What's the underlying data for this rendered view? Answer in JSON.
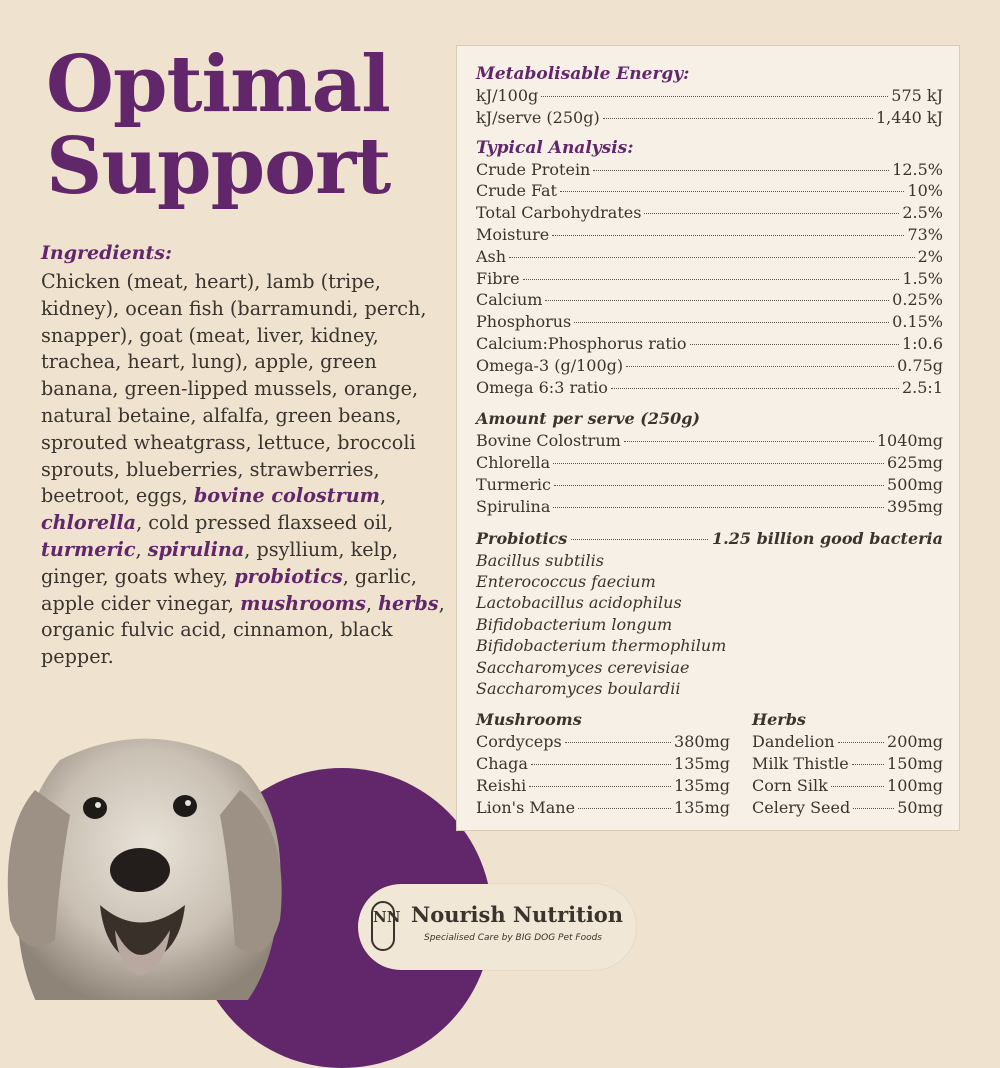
{
  "title": {
    "line1": "Optimal",
    "line2": "Support"
  },
  "ingredients": {
    "heading": "Ingredients:",
    "parts": [
      {
        "text": "Chicken (meat, heart), lamb (tripe, kidney), ocean fish (barramundi, perch, snapper), goat (meat, liver, kidney, trachea, heart, lung), apple, green banana, green-lipped mussels, orange, natural betaine, alfalfa, green beans, sprouted wheatgrass, lettuce, broccoli sprouts, blueberries, strawberries, beetroot, eggs, ",
        "bold": false
      },
      {
        "text": "bovine colostrum",
        "bold": true
      },
      {
        "text": ", ",
        "bold": false
      },
      {
        "text": "chlorella",
        "bold": true
      },
      {
        "text": ", cold pressed flaxseed oil, ",
        "bold": false
      },
      {
        "text": "turmeric",
        "bold": true
      },
      {
        "text": ", ",
        "bold": false
      },
      {
        "text": "spirulina",
        "bold": true
      },
      {
        "text": ", psyllium, kelp, ginger, goats whey, ",
        "bold": false
      },
      {
        "text": "probiotics",
        "bold": true
      },
      {
        "text": ", garlic, apple cider vinegar, ",
        "bold": false
      },
      {
        "text": "mushrooms",
        "bold": true
      },
      {
        "text": ", ",
        "bold": false
      },
      {
        "text": "herbs",
        "bold": true
      },
      {
        "text": ", organic fulvic acid, cinnamon, black pepper.",
        "bold": false
      }
    ]
  },
  "panel": {
    "energy": {
      "title": "Metabolisable Energy:",
      "rows": [
        {
          "label": "kJ/100g",
          "value": "575 kJ"
        },
        {
          "label": "kJ/serve (250g)",
          "value": "1,440 kJ"
        }
      ]
    },
    "analysis": {
      "title": "Typical Analysis:",
      "rows": [
        {
          "label": "Crude Protein",
          "value": "12.5%"
        },
        {
          "label": "Crude Fat",
          "value": "10%"
        },
        {
          "label": "Total Carbohydrates",
          "value": "2.5%"
        },
        {
          "label": "Moisture",
          "value": "73%"
        },
        {
          "label": "Ash",
          "value": "2%"
        },
        {
          "label": "Fibre",
          "value": "1.5%"
        },
        {
          "label": "Calcium",
          "value": "0.25%"
        },
        {
          "label": "Phosphorus",
          "value": "0.15%"
        },
        {
          "label": "Calcium:Phosphorus ratio",
          "value": "1:0.6"
        },
        {
          "label": "Omega-3 (g/100g)",
          "value": "0.75g"
        },
        {
          "label": "Omega 6:3 ratio",
          "value": "2.5:1"
        }
      ]
    },
    "serve": {
      "title": "Amount per serve (250g)",
      "rows": [
        {
          "label": "Bovine Colostrum",
          "value": "1040mg"
        },
        {
          "label": "Chlorella",
          "value": "625mg"
        },
        {
          "label": "Turmeric",
          "value": "500mg"
        },
        {
          "label": "Spirulina",
          "value": "395mg"
        }
      ]
    },
    "probiotics": {
      "label": "Probiotics",
      "value": "1.25 billion good bacteria",
      "species": [
        "Bacillus subtilis",
        "Enterococcus faecium",
        "Lactobacillus acidophilus",
        "Bifidobacterium longum",
        "Bifidobacterium thermophilum",
        "Saccharomyces cerevisiae",
        "Saccharomyces boulardii"
      ]
    },
    "mushrooms": {
      "title": "Mushrooms",
      "rows": [
        {
          "label": "Cordyceps",
          "value": "380mg"
        },
        {
          "label": "Chaga",
          "value": "135mg"
        },
        {
          "label": "Reishi",
          "value": "135mg"
        },
        {
          "label": "Lion's Mane",
          "value": "135mg"
        }
      ]
    },
    "herbs": {
      "title": "Herbs",
      "rows": [
        {
          "label": "Dandelion",
          "value": "200mg"
        },
        {
          "label": "Milk Thistle",
          "value": "150mg"
        },
        {
          "label": "Corn Silk",
          "value": "100mg"
        },
        {
          "label": "Celery Seed",
          "value": "50mg"
        }
      ]
    }
  },
  "brand": {
    "logo_letters": "NN",
    "name": "Nourish Nutrition",
    "tagline": "Specialised Care by BIG DOG Pet Foods"
  },
  "colors": {
    "accent": "#62276a",
    "background": "#efe3d0",
    "panel": "#f6f0e6",
    "text": "#3a342e"
  },
  "image": {
    "icon": "golden-retriever-dog-photo"
  }
}
